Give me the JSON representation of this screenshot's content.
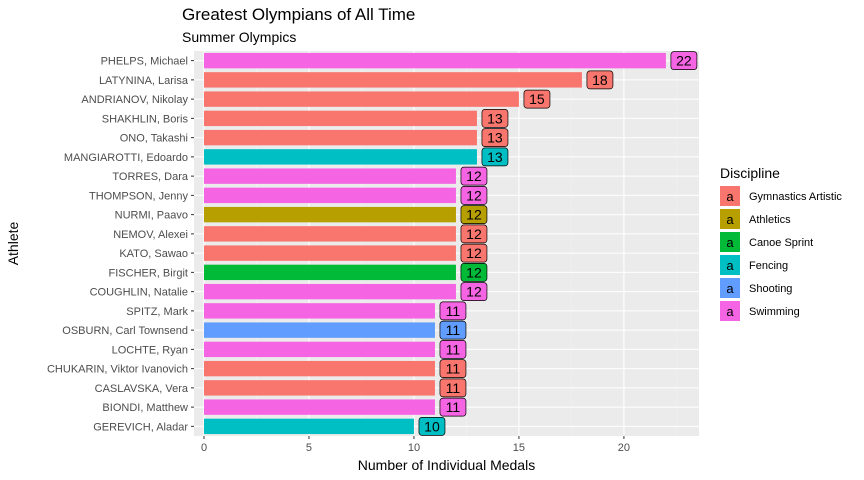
{
  "chart_data": {
    "type": "bar",
    "orientation": "horizontal",
    "title": "Greatest Olympians of All Time",
    "subtitle": "Summer Olympics",
    "xlabel": "Number of Individual Medals",
    "ylabel": "Athlete",
    "xlim": [
      0,
      23.1
    ],
    "xticks": [
      0,
      5,
      10,
      15,
      20
    ],
    "grid": true,
    "legend": {
      "title": "Discipline",
      "placement": "right",
      "key_glyph": "a",
      "items": [
        {
          "label": "Gymnastics Artistic",
          "color": "#F8766D"
        },
        {
          "label": "Athletics",
          "color": "#B79F00"
        },
        {
          "label": "Canoe Sprint",
          "color": "#00BA38"
        },
        {
          "label": "Fencing",
          "color": "#00BFC4"
        },
        {
          "label": "Shooting",
          "color": "#619CFF"
        },
        {
          "label": "Swimming",
          "color": "#F564E3"
        }
      ]
    },
    "categories": [
      "PHELPS, Michael",
      "LATYNINA, Larisa",
      "ANDRIANOV, Nikolay",
      "SHAKHLIN, Boris",
      "ONO, Takashi",
      "MANGIAROTTI, Edoardo",
      "TORRES, Dara",
      "THOMPSON, Jenny",
      "NURMI, Paavo",
      "NEMOV, Alexei",
      "KATO, Sawao",
      "FISCHER, Birgit",
      "COUGHLIN, Natalie",
      "SPITZ, Mark",
      "OSBURN, Carl Townsend",
      "LOCHTE, Ryan",
      "CHUKARIN, Viktor Ivanovich",
      "CASLAVSKA, Vera",
      "BIONDI, Matthew",
      "GEREVICH, Aladar"
    ],
    "values": [
      22,
      18,
      15,
      13,
      13,
      13,
      12,
      12,
      12,
      12,
      12,
      12,
      12,
      11,
      11,
      11,
      11,
      11,
      11,
      10
    ],
    "discipline": [
      "Swimming",
      "Gymnastics Artistic",
      "Gymnastics Artistic",
      "Gymnastics Artistic",
      "Gymnastics Artistic",
      "Fencing",
      "Swimming",
      "Swimming",
      "Athletics",
      "Gymnastics Artistic",
      "Gymnastics Artistic",
      "Canoe Sprint",
      "Swimming",
      "Swimming",
      "Shooting",
      "Swimming",
      "Gymnastics Artistic",
      "Gymnastics Artistic",
      "Swimming",
      "Fencing"
    ],
    "colors": {
      "panel_background": "#EBEBEB",
      "grid_major": "#FFFFFF",
      "grid_minor": "#F2F2F2",
      "tick_text": "#4D4D4D"
    }
  }
}
